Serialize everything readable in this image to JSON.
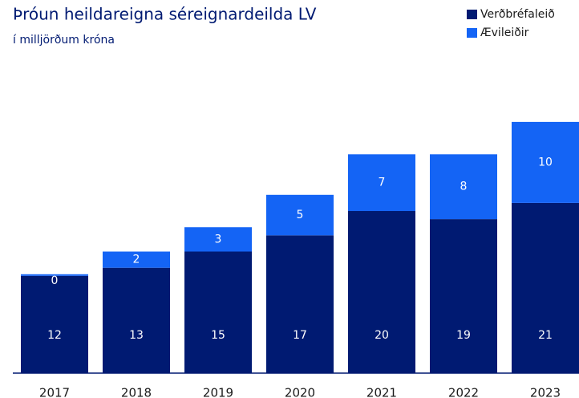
{
  "chart_data": {
    "type": "stacked_bar",
    "title": "Þróun heildareigna séreignardeilda LV",
    "subtitle": "í milljörðum króna",
    "categories": [
      "2017",
      "2018",
      "2019",
      "2020",
      "2021",
      "2022",
      "2023"
    ],
    "series": [
      {
        "name": "Verðbréfaleið",
        "color": "#001a72",
        "values": [
          12,
          13,
          15,
          17,
          20,
          19,
          21
        ]
      },
      {
        "name": "Ævileiðir",
        "color": "#1464f5",
        "values": [
          0.2,
          2,
          3,
          5,
          7,
          8,
          10
        ],
        "value_labels": [
          "0",
          "2",
          "3",
          "5",
          "7",
          "8",
          "10"
        ]
      }
    ],
    "legend": "top-right"
  }
}
